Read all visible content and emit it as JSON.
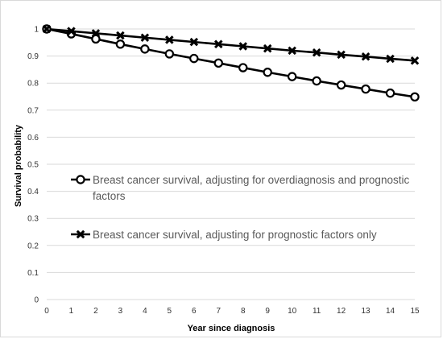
{
  "chart_data": {
    "type": "line",
    "title": "",
    "xlabel": "Year since diagnosis",
    "ylabel": "Survival probability",
    "x": [
      0,
      1,
      2,
      3,
      4,
      5,
      6,
      7,
      8,
      9,
      10,
      11,
      12,
      13,
      14,
      15
    ],
    "xlim": [
      0,
      15
    ],
    "ylim": [
      0,
      1
    ],
    "y_ticks": [
      "0",
      "0.1",
      "0.2",
      "0.3",
      "0.4",
      "0.5",
      "0.6",
      "0.7",
      "0.8",
      "0.9",
      "1"
    ],
    "x_ticks": [
      "0",
      "1",
      "2",
      "3",
      "4",
      "5",
      "6",
      "7",
      "8",
      "9",
      "10",
      "11",
      "12",
      "13",
      "14",
      "15"
    ],
    "grid": "horizontal",
    "legend_position": "inside-center-left",
    "series": [
      {
        "name": "Breast cancer survival, adjusting for overdiagnosis and prognostic factors",
        "marker": "circle",
        "color": "#000000",
        "values": [
          1.0,
          0.982,
          0.963,
          0.944,
          0.926,
          0.908,
          0.891,
          0.874,
          0.857,
          0.84,
          0.824,
          0.808,
          0.793,
          0.778,
          0.763,
          0.749
        ]
      },
      {
        "name": "Breast cancer survival, adjusting for prognostic factors only",
        "marker": "x",
        "color": "#000000",
        "values": [
          1.0,
          0.992,
          0.984,
          0.976,
          0.968,
          0.96,
          0.952,
          0.944,
          0.936,
          0.928,
          0.92,
          0.913,
          0.905,
          0.898,
          0.89,
          0.883
        ]
      }
    ],
    "legend_lines": [
      [
        "Breast cancer survival, adjusting for overdiagnosis and prognostic",
        "factors"
      ],
      [
        "Breast cancer survival, adjusting for prognostic factors only"
      ]
    ]
  }
}
